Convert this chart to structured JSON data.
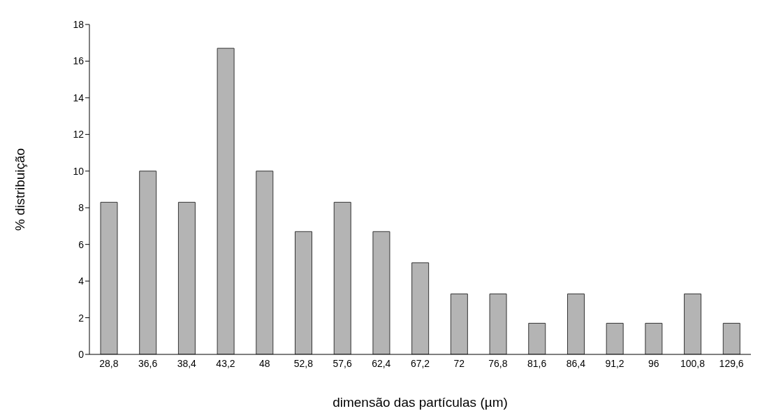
{
  "chart_data": {
    "type": "bar",
    "xlabel": "dimensão das partículas (µm)",
    "ylabel": "% distribuição",
    "categories": [
      "28,8",
      "36,6",
      "38,4",
      "43,2",
      "48",
      "52,8",
      "57,6",
      "62,4",
      "67,2",
      "72",
      "76,8",
      "81,6",
      "86,4",
      "91,2",
      "96",
      "100,8",
      "129,6"
    ],
    "values": [
      8.3,
      10,
      8.3,
      16.7,
      10,
      6.7,
      8.3,
      6.7,
      5,
      3.3,
      3.3,
      1.7,
      3.3,
      1.7,
      1.7,
      3.3,
      1.7
    ],
    "color": "#b4b4b4",
    "ylim": [
      0,
      18
    ],
    "yticks": [
      0,
      2,
      4,
      6,
      8,
      10,
      12,
      14,
      16,
      18
    ],
    "grid": false
  }
}
